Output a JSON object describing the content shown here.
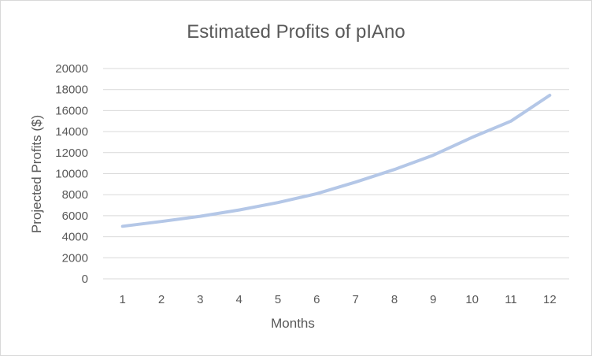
{
  "chart_data": {
    "type": "line",
    "title": "Estimated Profits of pIAno",
    "xlabel": "Months",
    "ylabel": "Projected Profits ($)",
    "x": [
      1,
      2,
      3,
      4,
      5,
      6,
      7,
      8,
      9,
      10,
      11,
      12
    ],
    "series": [
      {
        "values": [
          5000,
          5450,
          5950,
          6550,
          7250,
          8100,
          9200,
          10400,
          11750,
          13450,
          15000,
          17450
        ]
      }
    ],
    "ylim": [
      0,
      20000
    ],
    "yticks": [
      0,
      2000,
      4000,
      6000,
      8000,
      10000,
      12000,
      14000,
      16000,
      18000,
      20000
    ],
    "grid": true,
    "legend": "none",
    "colors": {
      "line": "#b4c7e7",
      "grid": "#d9d9d9",
      "text": "#595959"
    }
  }
}
